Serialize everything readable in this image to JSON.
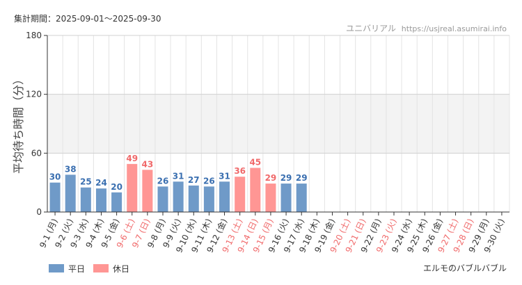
{
  "period_label": "集計期間：",
  "period_value": "2025-09-01〜2025-09-30",
  "site": {
    "name": "ユニバリアル",
    "url": "https://usjreal.asumirai.info"
  },
  "attraction_title": "エルモのバブルバブル",
  "legend": [
    {
      "label": "平日",
      "color": "#6f9ac8"
    },
    {
      "label": "休日",
      "color": "#ff9694"
    }
  ],
  "colors": {
    "weekday_bar": "#6f9ac8",
    "holiday_bar": "#ff9694",
    "weekday_text": "#3a6fb0",
    "holiday_text": "#f0696a",
    "band": "#f3f3f3",
    "grid": "#e4e4e4"
  },
  "chart_data": {
    "type": "bar",
    "ylabel": "平均待ち時間（分）",
    "ylim": [
      0,
      180
    ],
    "yticks": [
      0,
      60,
      120,
      180
    ],
    "grid": true,
    "legend_position": "bottom-left",
    "categories": [
      {
        "date": "9-1",
        "dow": "(月)",
        "holiday": false
      },
      {
        "date": "9-2",
        "dow": "(火)",
        "holiday": false
      },
      {
        "date": "9-3",
        "dow": "(水)",
        "holiday": false
      },
      {
        "date": "9-4",
        "dow": "(木)",
        "holiday": false
      },
      {
        "date": "9-5",
        "dow": "(金)",
        "holiday": false
      },
      {
        "date": "9-6",
        "dow": "(土)",
        "holiday": true
      },
      {
        "date": "9-7",
        "dow": "(日)",
        "holiday": true
      },
      {
        "date": "9-8",
        "dow": "(月)",
        "holiday": false
      },
      {
        "date": "9-9",
        "dow": "(火)",
        "holiday": false
      },
      {
        "date": "9-10",
        "dow": "(水)",
        "holiday": false
      },
      {
        "date": "9-11",
        "dow": "(木)",
        "holiday": false
      },
      {
        "date": "9-12",
        "dow": "(金)",
        "holiday": false
      },
      {
        "date": "9-13",
        "dow": "(土)",
        "holiday": true
      },
      {
        "date": "9-14",
        "dow": "(日)",
        "holiday": true
      },
      {
        "date": "9-15",
        "dow": "(月)",
        "holiday": true
      },
      {
        "date": "9-16",
        "dow": "(火)",
        "holiday": false
      },
      {
        "date": "9-17",
        "dow": "(水)",
        "holiday": false
      },
      {
        "date": "9-18",
        "dow": "(木)",
        "holiday": false
      },
      {
        "date": "9-19",
        "dow": "(金)",
        "holiday": false
      },
      {
        "date": "9-20",
        "dow": "(土)",
        "holiday": true
      },
      {
        "date": "9-21",
        "dow": "(日)",
        "holiday": true
      },
      {
        "date": "9-22",
        "dow": "(月)",
        "holiday": false
      },
      {
        "date": "9-23",
        "dow": "(火)",
        "holiday": true
      },
      {
        "date": "9-24",
        "dow": "(水)",
        "holiday": false
      },
      {
        "date": "9-25",
        "dow": "(木)",
        "holiday": false
      },
      {
        "date": "9-26",
        "dow": "(金)",
        "holiday": false
      },
      {
        "date": "9-27",
        "dow": "(土)",
        "holiday": true
      },
      {
        "date": "9-28",
        "dow": "(日)",
        "holiday": true
      },
      {
        "date": "9-29",
        "dow": "(月)",
        "holiday": false
      },
      {
        "date": "9-30",
        "dow": "(火)",
        "holiday": false
      }
    ],
    "values": [
      30,
      38,
      25,
      24,
      20,
      49,
      43,
      26,
      31,
      27,
      26,
      31,
      36,
      45,
      29,
      29,
      29,
      null,
      null,
      null,
      null,
      null,
      null,
      null,
      null,
      null,
      null,
      null,
      null,
      null
    ]
  }
}
